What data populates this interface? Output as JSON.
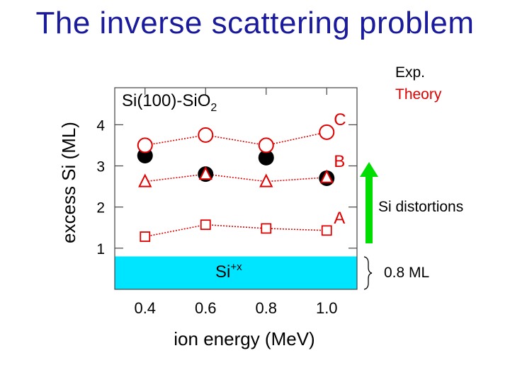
{
  "slide": {
    "title": "The inverse scattering problem"
  },
  "legend": {
    "exp": "Exp.",
    "theory": "Theory"
  },
  "annotations": {
    "si_distortions": "Si distortions",
    "band_thickness": "0.8 ML",
    "band_label_base": "Si",
    "band_label_sup": "+x",
    "panel_base": "Si(100)-SiO",
    "panel_sub": "2"
  },
  "colors": {
    "theory": "#e00000",
    "experiment": "#000000",
    "band": "#00e5ff",
    "arrow": "#00dd00",
    "title": "#1a1a9c"
  },
  "chart_data": {
    "type": "scatter",
    "xlabel": "ion energy (MeV)",
    "ylabel": "excess Si (ML)",
    "xlim": [
      0.3,
      1.1
    ],
    "ylim": [
      0,
      4.9
    ],
    "x_ticks": [
      "0.4",
      "0.6",
      "0.8",
      "1.0"
    ],
    "y_ticks": [
      "1",
      "2",
      "3",
      "4"
    ],
    "shaded_band": {
      "label": "Si+x",
      "ymin": 0,
      "ymax": 0.8,
      "thickness_label": "0.8 ML"
    },
    "series": [
      {
        "name": "Exp.",
        "marker": "filled-circle",
        "x": [
          0.4,
          0.6,
          0.8,
          1.0
        ],
        "y": [
          3.25,
          2.8,
          3.2,
          2.7
        ]
      },
      {
        "name": "C",
        "marker": "open-circle",
        "x": [
          0.4,
          0.6,
          0.8,
          1.0
        ],
        "y": [
          3.5,
          3.75,
          3.5,
          3.82
        ]
      },
      {
        "name": "B",
        "marker": "open-triangle",
        "x": [
          0.4,
          0.6,
          0.8,
          1.0
        ],
        "y": [
          2.62,
          2.8,
          2.62,
          2.72
        ]
      },
      {
        "name": "A",
        "marker": "open-square",
        "x": [
          0.4,
          0.6,
          0.8,
          1.0
        ],
        "y": [
          1.28,
          1.57,
          1.48,
          1.43
        ]
      }
    ]
  }
}
